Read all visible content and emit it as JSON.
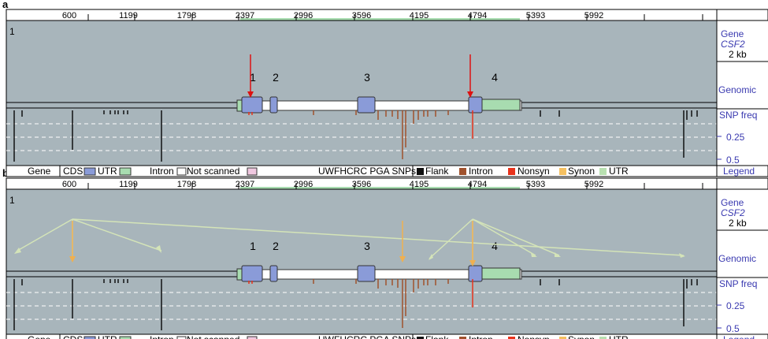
{
  "panels": [
    {
      "label": "a",
      "track_number": "1",
      "ruler_ticks": [
        "600",
        "1199",
        "1798",
        "2397",
        "2996",
        "3596",
        "4195",
        "4794",
        "5393",
        "5992"
      ],
      "exon_numbers": [
        "1",
        "2",
        "3",
        "4"
      ],
      "arrow_color": "#dd1111",
      "linkage_lines": false
    },
    {
      "label": "b",
      "track_number": "1",
      "ruler_ticks": [
        "600",
        "1199",
        "1798",
        "2397",
        "2996",
        "3596",
        "4195",
        "4794",
        "5393",
        "5992"
      ],
      "exon_numbers": [
        "1",
        "2",
        "3",
        "4"
      ],
      "arrow_color": "#f0b050",
      "linkage_lines": true
    }
  ],
  "side_labels": {
    "gene_header": "Gene",
    "gene_name": "CSF2",
    "scale": "2 kb",
    "genomic": "Genomic",
    "snp_freq": "SNP freq",
    "freq_025": "0.25",
    "freq_05": "0.5",
    "legend": "Legend"
  },
  "legend": {
    "gene": "Gene",
    "cds": "CDS",
    "utr": "UTR",
    "intron": "Intron",
    "not_scanned": "Not scanned",
    "snps_title": "UWFHCRC PGA SNPs",
    "flank": "Flank",
    "snp_intron": "Intron",
    "nonsyn": "Nonsyn",
    "synon": "Synon",
    "snp_utr": "UTR"
  },
  "colors": {
    "track_bg": "#a8b5bb",
    "cds": "#8a9bd8",
    "utr": "#a8dcb0",
    "intron": "#ffffff",
    "not_scanned": "#f0c8e0",
    "flank_snp": "#111111",
    "intron_snp": "#a0522d",
    "nonsyn_snp": "#e8331c",
    "synon_snp": "#f5c060",
    "utr_snp": "#b8e0b0",
    "side_text": "#3a3ab0"
  }
}
